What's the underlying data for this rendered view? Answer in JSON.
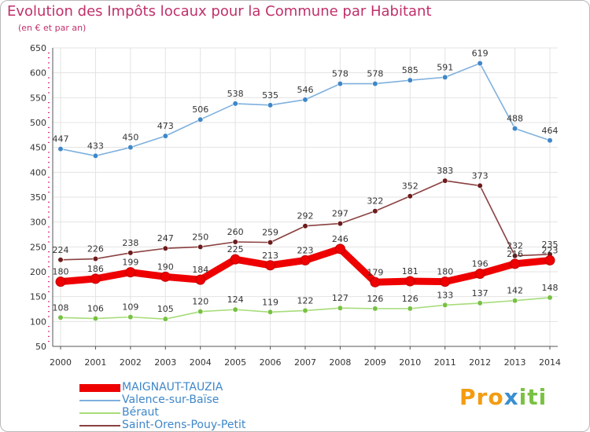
{
  "title": "Evolution des Impôts locaux pour la Commune par Habitant",
  "subtitle": "(en € et par an)",
  "logo": {
    "parts": [
      "Pro",
      "x",
      "iti"
    ],
    "colors": [
      "#f39c12",
      "#3a8fd0",
      "#e8442f",
      "#7ac142"
    ]
  },
  "colors": {
    "title": "#c0306a",
    "axis": "#555555",
    "grid": "#e3e3e3",
    "tick_red": "#e0006a"
  },
  "chart_data": {
    "type": "line",
    "title": "Evolution des Impôts locaux pour la Commune par Habitant",
    "subtitle": "(en € et par an)",
    "xlabel": "",
    "ylabel": "",
    "x": [
      "2000",
      "2001",
      "2002",
      "2003",
      "2004",
      "2005",
      "2006",
      "2007",
      "2008",
      "2009",
      "2010",
      "2011",
      "2012",
      "2013",
      "2014"
    ],
    "ylim": [
      50,
      650
    ],
    "yticks": [
      "50",
      "100",
      "150",
      "200",
      "250",
      "300",
      "350",
      "400",
      "450",
      "500",
      "550",
      "600",
      "650"
    ],
    "grid": true,
    "legend_position": "bottom-left",
    "series": [
      {
        "name": "MAIGNAUT-TAUZIA",
        "color": "#ee0000",
        "marker": "#ee0000",
        "thick": true,
        "values": [
          180,
          186,
          199,
          190,
          184,
          225,
          213,
          223,
          246,
          179,
          181,
          180,
          196,
          216,
          223
        ],
        "labels": [
          "180",
          "186",
          "199",
          "190",
          "184",
          "225",
          "213",
          "223",
          "246",
          "179",
          "181",
          "180",
          "196",
          "216",
          "223"
        ]
      },
      {
        "name": "Valence-sur-Baïse",
        "color": "#7fb0dd",
        "marker": "#3f87c9",
        "thick": false,
        "values": [
          447,
          433,
          450,
          473,
          506,
          538,
          535,
          546,
          578,
          578,
          585,
          591,
          619,
          488,
          464
        ],
        "labels": [
          "447",
          "433",
          "450",
          "473",
          "506",
          "538",
          "535",
          "546",
          "578",
          "578",
          "585",
          "591",
          "619",
          "488",
          "464"
        ]
      },
      {
        "name": "Béraut",
        "color": "#a7dc7a",
        "marker": "#77c142",
        "thick": false,
        "values": [
          108,
          106,
          109,
          105,
          120,
          124,
          119,
          122,
          127,
          126,
          126,
          133,
          137,
          142,
          148
        ],
        "labels": [
          "108",
          "106",
          "109",
          "105",
          "120",
          "124",
          "119",
          "122",
          "127",
          "126",
          "126",
          "133",
          "137",
          "142",
          "148"
        ]
      },
      {
        "name": "Saint-Orens-Pouy-Petit",
        "color": "#8b4040",
        "marker": "#6d1b1b",
        "thick": false,
        "values": [
          224,
          226,
          238,
          247,
          250,
          260,
          259,
          292,
          297,
          322,
          352,
          383,
          373,
          232,
          235
        ],
        "labels": [
          "224",
          "226",
          "238",
          "247",
          "250",
          "260",
          "259",
          "292",
          "297",
          "322",
          "352",
          "383",
          "373",
          "232",
          "235"
        ]
      }
    ]
  }
}
